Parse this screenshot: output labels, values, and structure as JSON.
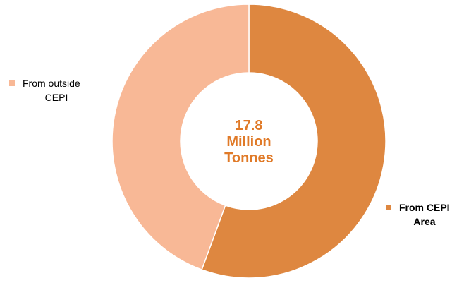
{
  "chart_data": {
    "type": "pie",
    "donut": true,
    "total_label": [
      "17.8",
      "Million",
      "Tonnes"
    ],
    "slices": [
      {
        "label": [
          "From CEPI",
          "Area"
        ],
        "value": 55.6,
        "color": "#de8740",
        "bold_label": true
      },
      {
        "label": [
          "From outside",
          "CEPI"
        ],
        "value": 44.4,
        "color": "#f8b896",
        "bold_label": false
      }
    ],
    "colors": {
      "center_text": "#e07a28",
      "slice_border": "#ffffff"
    },
    "legend_placement": "beside-slices"
  }
}
